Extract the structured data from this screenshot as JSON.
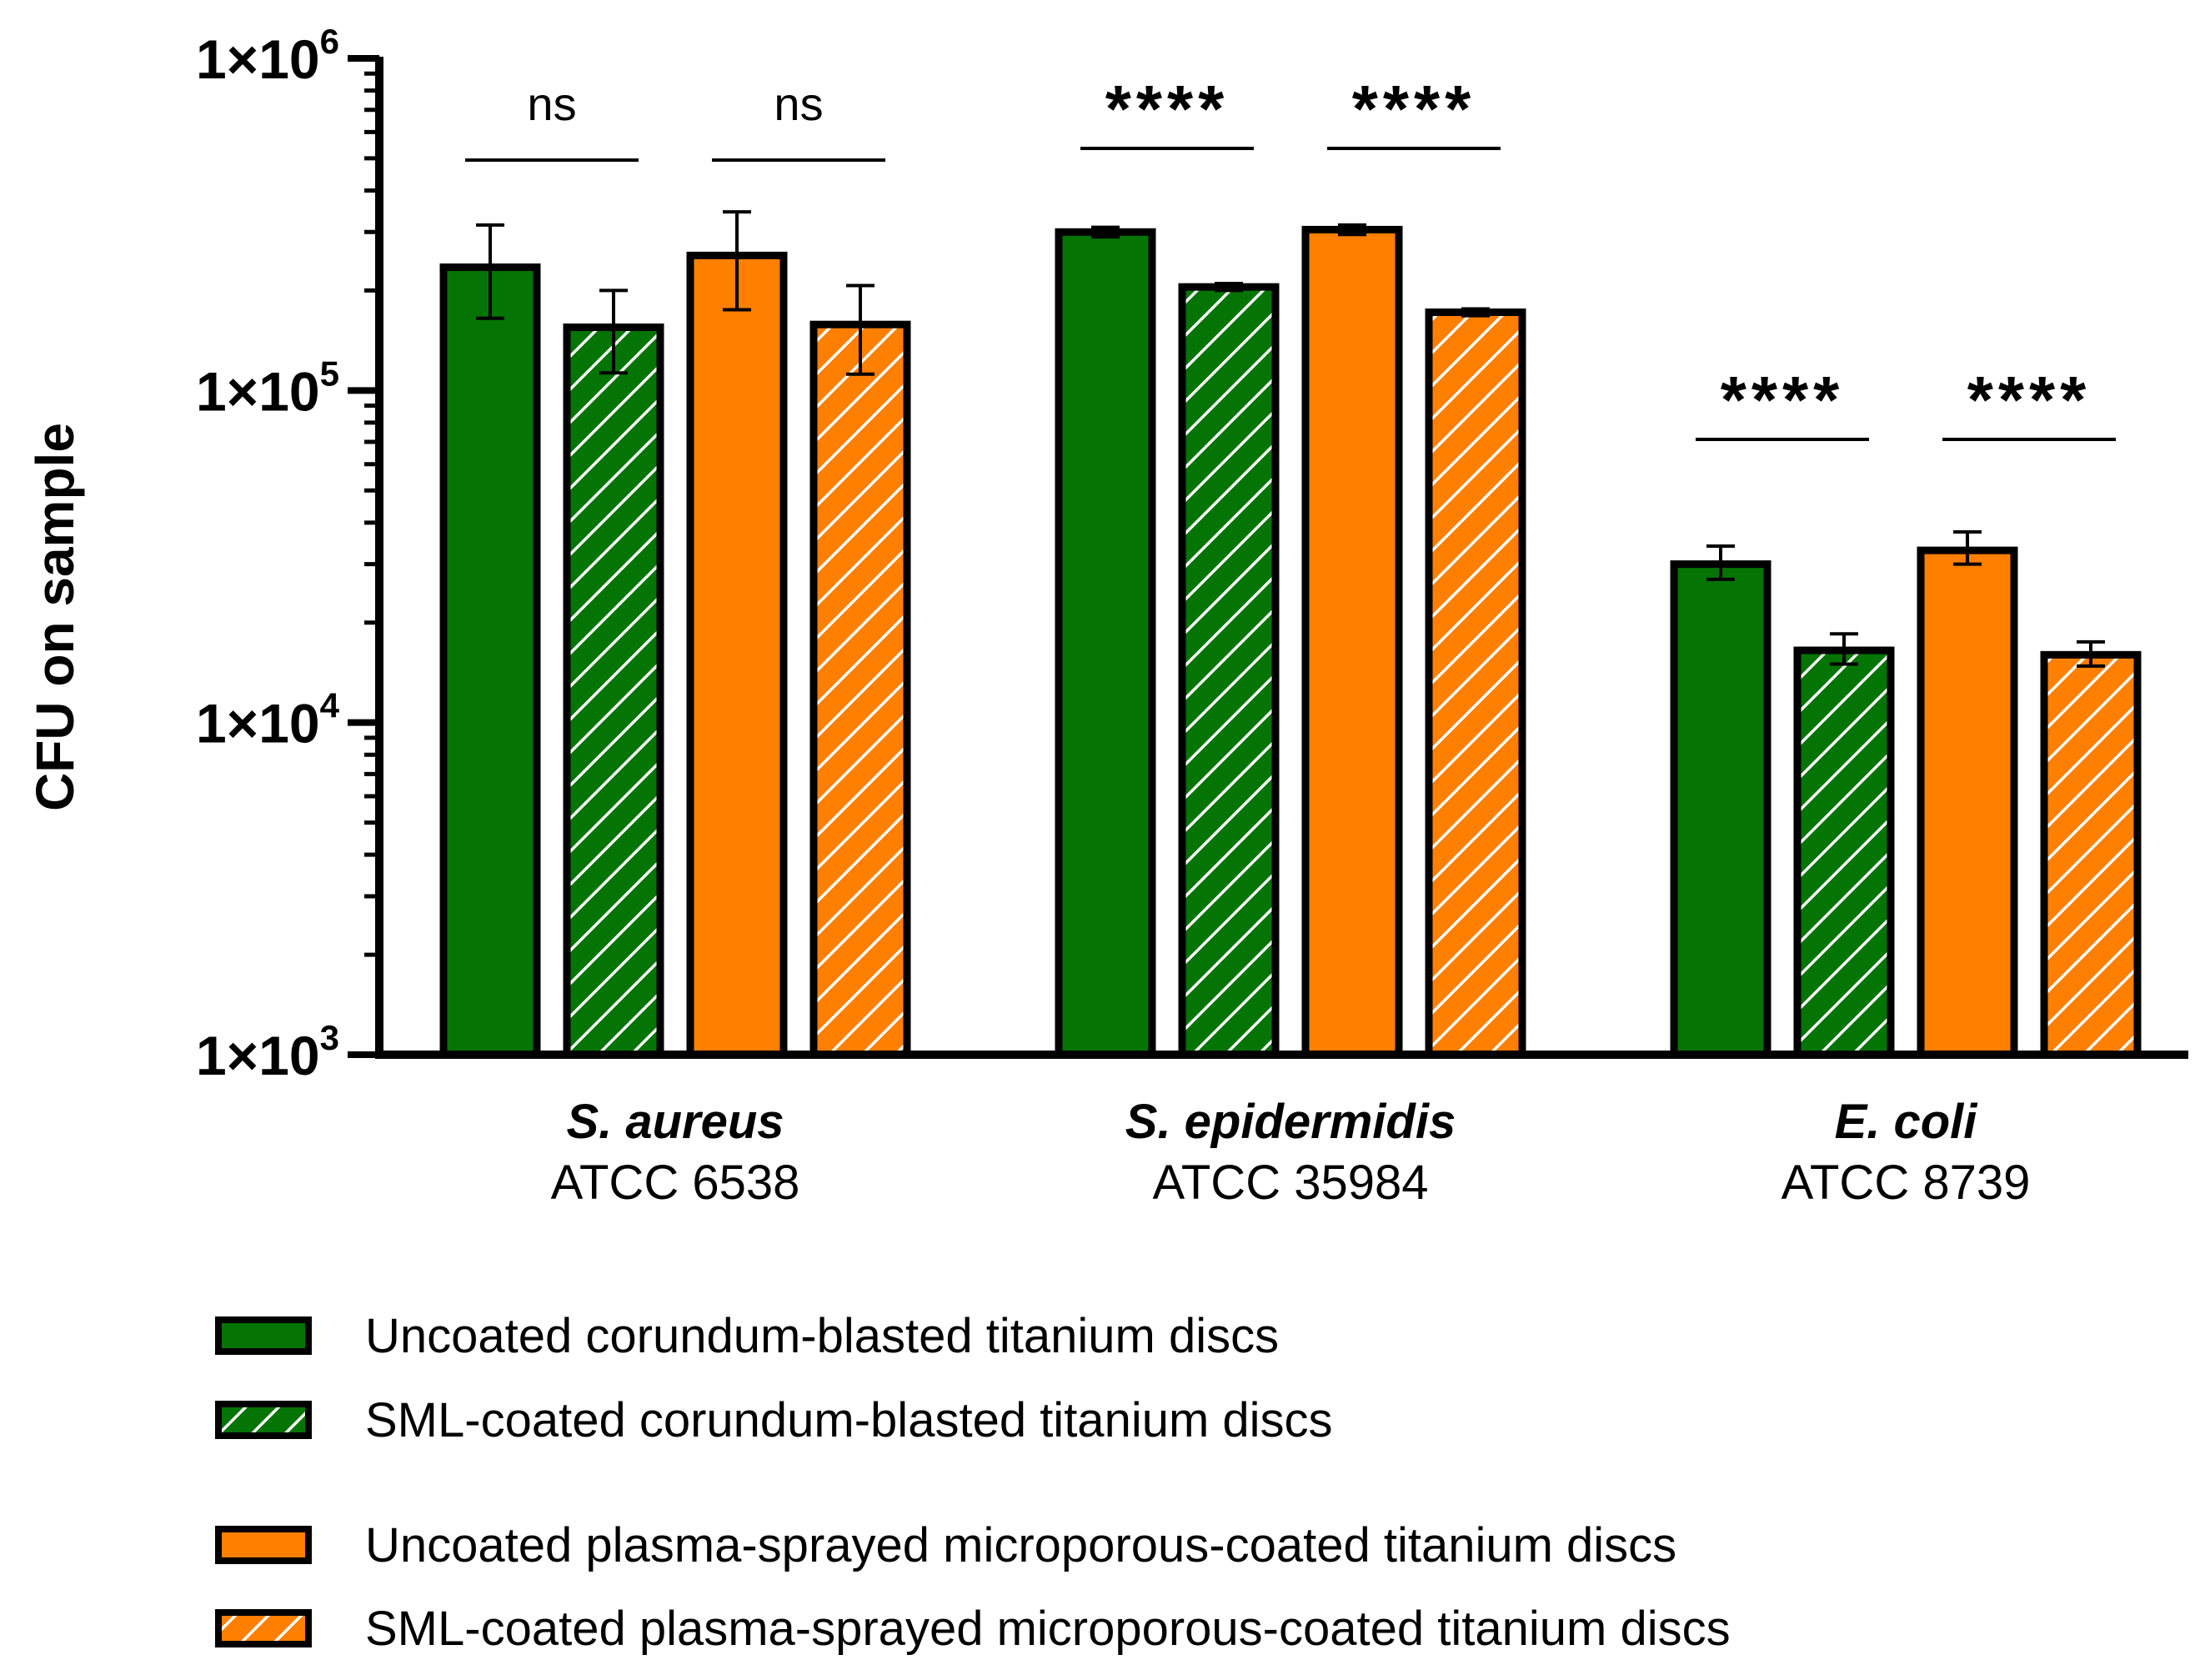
{
  "chart_data": {
    "type": "bar",
    "yscale": "log",
    "ylabel": "CFU on sample",
    "ylim": [
      1000,
      1000000
    ],
    "yticks": [
      {
        "value": 1000,
        "base": "1×10",
        "exp": "3"
      },
      {
        "value": 10000,
        "base": "1×10",
        "exp": "4"
      },
      {
        "value": 100000,
        "base": "1×10",
        "exp": "5"
      },
      {
        "value": 1000000,
        "base": "1×10",
        "exp": "6"
      }
    ],
    "groups": [
      {
        "name": "S. aureus",
        "sub": "ATCC 6538"
      },
      {
        "name": "S.  epidermidis",
        "sub": "ATCC 35984"
      },
      {
        "name": "E. coli",
        "sub": "ATCC 8739"
      }
    ],
    "series": [
      {
        "name": "Uncoated corundum-blasted titanium discs",
        "color": "#047404",
        "pattern": "solid",
        "values": [
          235000,
          300000,
          30000
        ],
        "err_low": [
          165000,
          290000,
          27000
        ],
        "err_high": [
          315000,
          310000,
          34000
        ]
      },
      {
        "name": "SML-coated corundum-blasted titanium discs",
        "color": "#047404",
        "pattern": "hatched",
        "values": [
          155000,
          205000,
          16500
        ],
        "err_low": [
          113000,
          200000,
          15000
        ],
        "err_high": [
          200000,
          210000,
          18500
        ]
      },
      {
        "name": "Uncoated plasma-sprayed microporous-coated titanium discs",
        "color": "#FF7F00",
        "pattern": "solid",
        "values": [
          255000,
          305000,
          33000
        ],
        "err_low": [
          175000,
          295000,
          30000
        ],
        "err_high": [
          345000,
          315000,
          37500
        ]
      },
      {
        "name": "SML-coated plasma-sprayed microporous-coated titanium discs",
        "color": "#FF7F00",
        "pattern": "hatched",
        "values": [
          158000,
          172000,
          16000
        ],
        "err_low": [
          112000,
          168000,
          14800
        ],
        "err_high": [
          207000,
          176000,
          17500
        ]
      }
    ],
    "significance": [
      {
        "group": 0,
        "pair": [
          0,
          1
        ],
        "label": "ns"
      },
      {
        "group": 0,
        "pair": [
          2,
          3
        ],
        "label": "ns"
      },
      {
        "group": 1,
        "pair": [
          0,
          1
        ],
        "label": "****"
      },
      {
        "group": 1,
        "pair": [
          2,
          3
        ],
        "label": "****"
      },
      {
        "group": 2,
        "pair": [
          0,
          1
        ],
        "label": "****"
      },
      {
        "group": 2,
        "pair": [
          2,
          3
        ],
        "label": "****"
      }
    ],
    "legend_position": "bottom-left"
  }
}
